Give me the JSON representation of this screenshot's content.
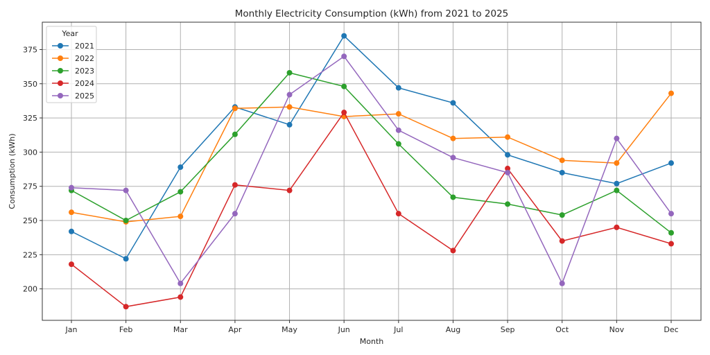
{
  "chart_data": {
    "type": "line",
    "title": "Monthly Electricity Consumption (kWh) from 2021 to 2025",
    "xlabel": "Month",
    "ylabel": "Consumption (kWh)",
    "categories": [
      "Jan",
      "Feb",
      "Mar",
      "Apr",
      "May",
      "Jun",
      "Jul",
      "Aug",
      "Sep",
      "Oct",
      "Nov",
      "Dec"
    ],
    "ylim": [
      177,
      395
    ],
    "yticks": [
      200,
      225,
      250,
      275,
      300,
      325,
      350,
      375
    ],
    "grid": true,
    "legend": {
      "title": "Year",
      "placement": "top-left"
    },
    "series": [
      {
        "name": "2021",
        "color": "#1f77b4",
        "values": [
          242,
          222,
          289,
          333,
          320,
          385,
          347,
          336,
          298,
          285,
          277,
          292
        ]
      },
      {
        "name": "2022",
        "color": "#ff7f0e",
        "values": [
          256,
          249,
          253,
          332,
          333,
          326,
          328,
          310,
          311,
          294,
          292,
          343
        ]
      },
      {
        "name": "2023",
        "color": "#2ca02c",
        "values": [
          272,
          250,
          271,
          313,
          358,
          348,
          306,
          267,
          262,
          254,
          272,
          241
        ]
      },
      {
        "name": "2024",
        "color": "#d62728",
        "values": [
          218,
          187,
          194,
          276,
          272,
          329,
          255,
          228,
          288,
          235,
          245,
          233
        ]
      },
      {
        "name": "2025",
        "color": "#9467bd",
        "values": [
          274,
          272,
          204,
          255,
          342,
          370,
          316,
          296,
          285,
          204,
          310,
          255
        ]
      }
    ]
  }
}
